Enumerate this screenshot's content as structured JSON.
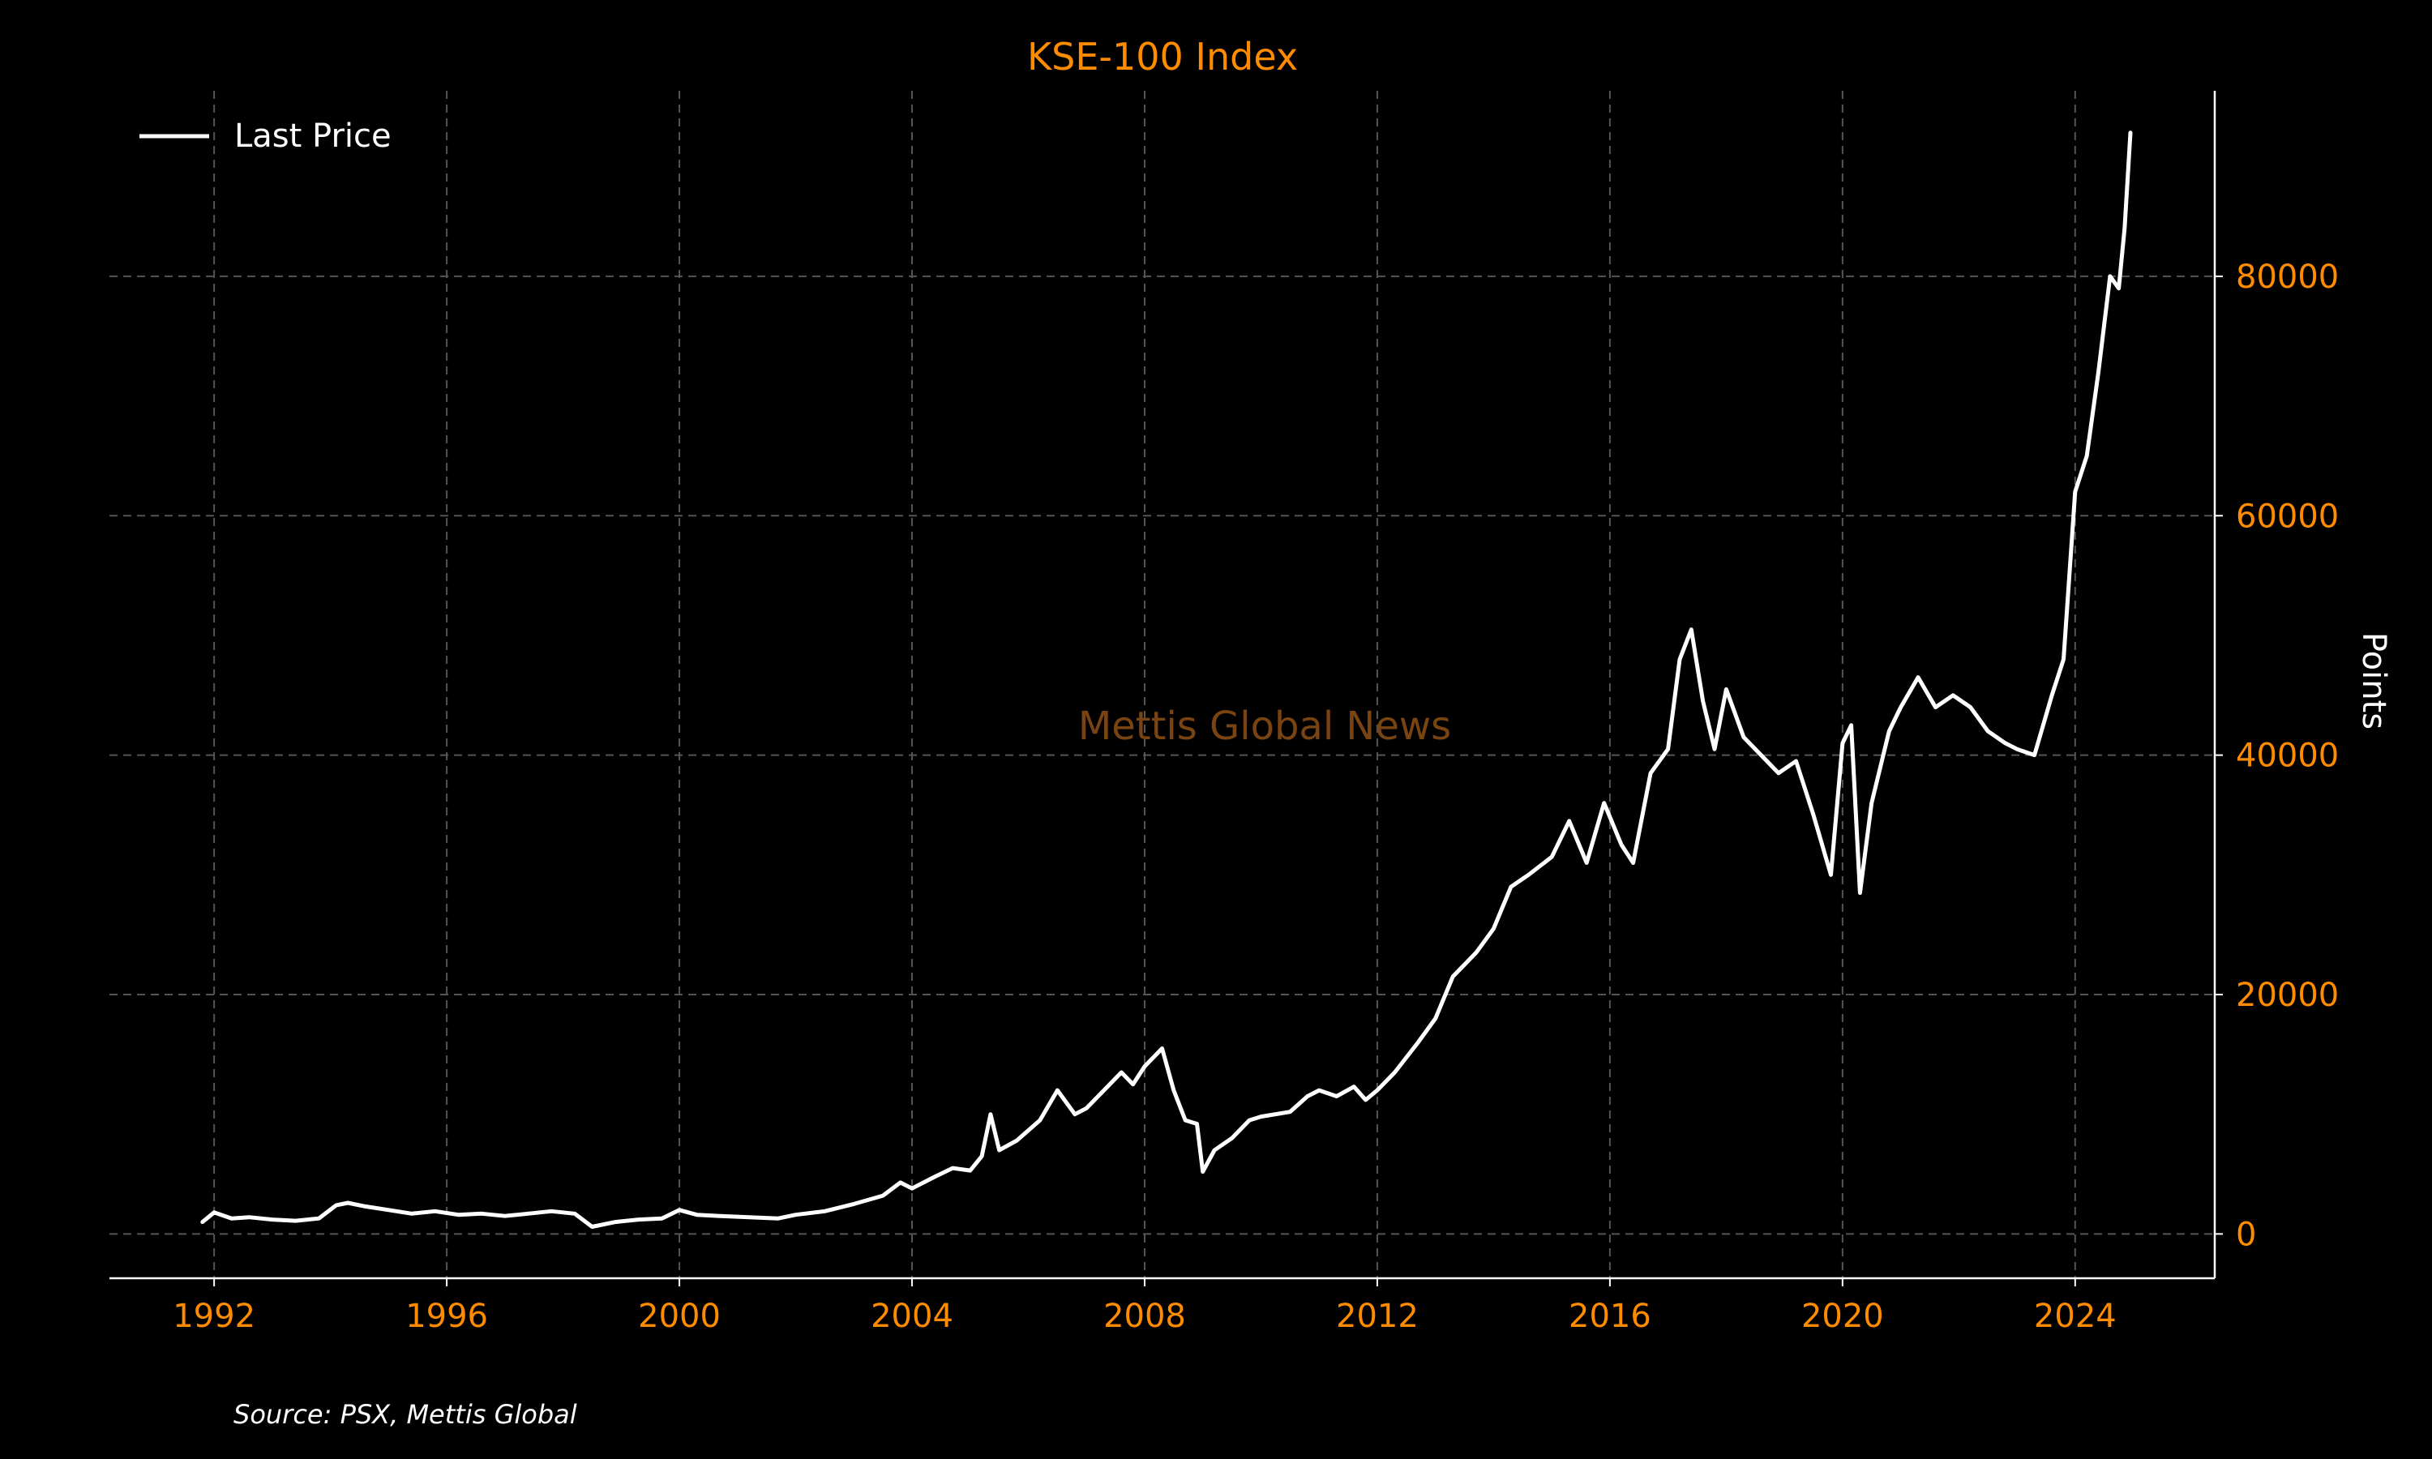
{
  "chart_data": {
    "type": "line",
    "title": "KSE-100 Index",
    "xlabel": "",
    "ylabel": "Points",
    "xlim": [
      1990.2,
      2026.4
    ],
    "ylim": [
      -3700,
      95500
    ],
    "x_ticks": [
      "1992",
      "1996",
      "2000",
      "2004",
      "2008",
      "2012",
      "2016",
      "2020",
      "2024"
    ],
    "y_ticks": [
      "0",
      "20000",
      "40000",
      "60000",
      "80000"
    ],
    "y_axis_position": "right",
    "grid": true,
    "legend": "top-left",
    "series": [
      {
        "name": "Last Price",
        "color": "#ffffff",
        "x": [
          1991.8,
          1992.0,
          1992.3,
          1992.6,
          1993.0,
          1993.4,
          1993.8,
          1994.1,
          1994.3,
          1994.6,
          1995.0,
          1995.4,
          1995.8,
          1996.2,
          1996.6,
          1997.0,
          1997.4,
          1997.8,
          1998.2,
          1998.5,
          1998.9,
          1999.3,
          1999.7,
          2000.0,
          2000.3,
          2000.7,
          2001.2,
          2001.7,
          2002.0,
          2002.5,
          2003.0,
          2003.5,
          2003.8,
          2004.0,
          2004.4,
          2004.7,
          2005.0,
          2005.2,
          2005.35,
          2005.5,
          2005.8,
          2006.2,
          2006.5,
          2006.8,
          2007.0,
          2007.3,
          2007.6,
          2007.8,
          2008.0,
          2008.3,
          2008.5,
          2008.7,
          2008.9,
          2009.0,
          2009.2,
          2009.5,
          2009.8,
          2010.0,
          2010.5,
          2010.8,
          2011.0,
          2011.3,
          2011.6,
          2011.8,
          2012.0,
          2012.3,
          2012.7,
          2013.0,
          2013.3,
          2013.5,
          2013.7,
          2014.0,
          2014.3,
          2014.6,
          2015.0,
          2015.3,
          2015.6,
          2015.9,
          2016.2,
          2016.4,
          2016.7,
          2017.0,
          2017.2,
          2017.4,
          2017.6,
          2017.8,
          2018.0,
          2018.3,
          2018.6,
          2018.9,
          2019.2,
          2019.5,
          2019.8,
          2020.0,
          2020.15,
          2020.3,
          2020.5,
          2020.8,
          2021.0,
          2021.3,
          2021.6,
          2021.9,
          2022.2,
          2022.5,
          2022.8,
          2023.0,
          2023.3,
          2023.6,
          2023.8,
          2024.0,
          2024.2,
          2024.4,
          2024.6,
          2024.75,
          2024.85,
          2024.95
        ],
        "y": [
          1000,
          1800,
          1300,
          1400,
          1200,
          1100,
          1300,
          2400,
          2600,
          2300,
          2000,
          1700,
          1900,
          1600,
          1700,
          1500,
          1700,
          1900,
          1700,
          600,
          1000,
          1200,
          1300,
          2000,
          1600,
          1500,
          1400,
          1300,
          1600,
          1900,
          2500,
          3200,
          4300,
          3800,
          4800,
          5500,
          5300,
          6500,
          10000,
          7000,
          7800,
          9500,
          12000,
          10000,
          10500,
          12000,
          13500,
          12500,
          14000,
          15500,
          12000,
          9500,
          9200,
          5200,
          7000,
          8000,
          9500,
          9800,
          10200,
          11500,
          12000,
          11500,
          12300,
          11200,
          12000,
          13500,
          16000,
          18000,
          21500,
          22500,
          23500,
          25500,
          29000,
          30000,
          31500,
          34500,
          31000,
          36000,
          32500,
          31000,
          38500,
          40500,
          48000,
          50500,
          44500,
          40500,
          45500,
          41500,
          40000,
          38500,
          39500,
          35000,
          30000,
          41000,
          42500,
          28500,
          36000,
          42000,
          44000,
          46500,
          44000,
          45000,
          44000,
          42000,
          41000,
          40500,
          40000,
          45000,
          48000,
          62000,
          65000,
          72000,
          80000,
          79000,
          84000,
          92000
        ]
      }
    ],
    "annotations": [
      "Mettis Global News"
    ]
  },
  "footer": {
    "source": "Source: PSX, Mettis Global"
  },
  "colors": {
    "background": "#000000",
    "accent": "#ff8c00",
    "line": "#ffffff",
    "grid": "#555555",
    "watermark": "#7a4412"
  }
}
